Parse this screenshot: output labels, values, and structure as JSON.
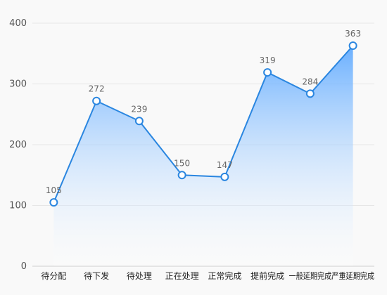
{
  "chart_data": {
    "type": "area",
    "title": "",
    "xlabel": "",
    "ylabel": "",
    "categories": [
      "待分配",
      "待下发",
      "待处理",
      "正在处理",
      "正常完成",
      "提前完成",
      "一般延期完成",
      "严重延期完成"
    ],
    "series": [
      {
        "values": [
          105,
          272,
          239,
          150,
          147,
          319,
          284,
          363
        ]
      }
    ],
    "ylim": [
      0,
      400
    ],
    "yticks": [
      0,
      100,
      200,
      300,
      400
    ],
    "grid": true,
    "legend": "none",
    "show_data_labels": true,
    "colors": {
      "line": "#2a86e0",
      "fill_top": "#5aa7ff",
      "fill_bottom": "#ffffff",
      "marker_fill": "#ffffff",
      "grid": "#e6e6e6",
      "background": "#f9f9f9"
    }
  }
}
